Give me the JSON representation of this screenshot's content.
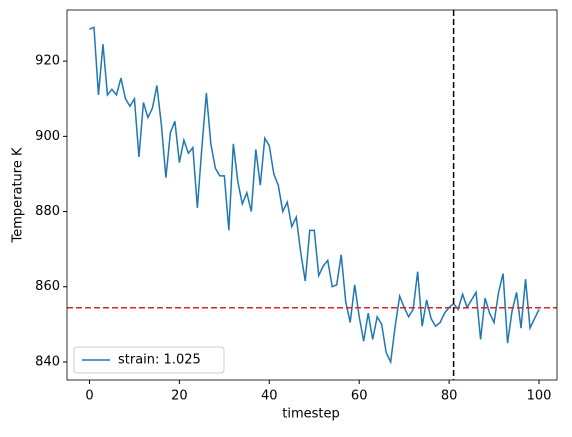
{
  "chart_data": {
    "type": "line",
    "xlabel": "timestep",
    "ylabel": "Temperature K",
    "x": [
      0,
      1,
      2,
      3,
      4,
      5,
      6,
      7,
      8,
      9,
      10,
      11,
      12,
      13,
      14,
      15,
      16,
      17,
      18,
      19,
      20,
      21,
      22,
      23,
      24,
      25,
      26,
      27,
      28,
      29,
      30,
      31,
      32,
      33,
      34,
      35,
      36,
      37,
      38,
      39,
      40,
      41,
      42,
      43,
      44,
      45,
      46,
      47,
      48,
      49,
      50,
      51,
      52,
      53,
      54,
      55,
      56,
      57,
      58,
      59,
      60,
      61,
      62,
      63,
      64,
      65,
      66,
      67,
      68,
      69,
      70,
      71,
      72,
      73,
      74,
      75,
      76,
      77,
      78,
      79,
      80,
      81,
      82,
      83,
      84,
      85,
      86,
      87,
      88,
      89,
      90,
      91,
      92,
      93,
      94,
      95,
      96,
      97,
      98,
      99,
      100
    ],
    "series": [
      {
        "name": "strain: 1.025",
        "color": "#1f77b4",
        "values": [
          928.5,
          929,
          911,
          924.5,
          911,
          912.5,
          911,
          915.5,
          910,
          908,
          910,
          894.5,
          909,
          905,
          907.5,
          913.5,
          903,
          889,
          901,
          904,
          893,
          899,
          895.5,
          897,
          881,
          897,
          911.5,
          898,
          891.5,
          889.5,
          889.5,
          875,
          898,
          888,
          882,
          885,
          880,
          896.5,
          887,
          899.5,
          897.5,
          890,
          887,
          880,
          882.5,
          876,
          878.5,
          869,
          861.5,
          875,
          875,
          863,
          865.5,
          867,
          860,
          860.5,
          868.5,
          856,
          850.5,
          860.5,
          852,
          845.5,
          853,
          846,
          852,
          850,
          842.5,
          840,
          849.5,
          857.5,
          854.5,
          852,
          854,
          864,
          849.5,
          856.5,
          851.5,
          849.5,
          850.5,
          853,
          854.5,
          855.5,
          854,
          858,
          854.5,
          856.5,
          858.5,
          846,
          857,
          853,
          850.5,
          858.5,
          863.5,
          845,
          853.5,
          858.5,
          849,
          862,
          849,
          851.5,
          854
        ]
      }
    ],
    "xlim": [
      -5,
      104
    ],
    "ylim": [
      835.2,
      933.6
    ],
    "xticks": [
      0,
      20,
      40,
      60,
      80,
      100
    ],
    "yticks": [
      840,
      860,
      880,
      900,
      920
    ],
    "hline": {
      "y": 854.4,
      "color": "#d62728"
    },
    "vline": {
      "x": 81,
      "color": "#000000"
    },
    "legend": "lower left"
  }
}
